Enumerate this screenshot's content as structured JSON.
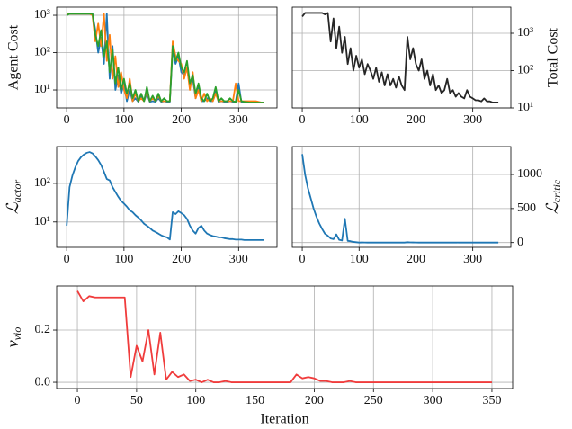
{
  "chart_data": [
    {
      "type": "line",
      "ylabel": "Agent Cost",
      "yaxis": "left",
      "yscale": "log",
      "grid": true,
      "x": [
        0,
        5,
        10,
        15,
        20,
        25,
        30,
        35,
        40,
        45,
        50,
        55,
        60,
        65,
        70,
        75,
        80,
        85,
        90,
        95,
        100,
        105,
        110,
        115,
        120,
        125,
        130,
        135,
        140,
        145,
        150,
        155,
        160,
        165,
        170,
        175,
        180,
        185,
        190,
        195,
        200,
        205,
        210,
        215,
        220,
        225,
        230,
        235,
        240,
        245,
        250,
        255,
        260,
        265,
        270,
        275,
        280,
        285,
        290,
        295,
        300,
        305,
        310,
        315,
        320,
        325,
        330,
        335,
        340,
        345
      ],
      "xlim": [
        -17.5,
        367
      ],
      "xticks": [
        0,
        100,
        200,
        300
      ],
      "ylim": [
        3.3,
        1650
      ],
      "yticks": [
        {
          "value": 10,
          "label": "10¹"
        },
        {
          "value": 100,
          "label": "10²"
        },
        {
          "value": 1000,
          "label": "10³"
        }
      ],
      "series": [
        {
          "color": "#1f77b4",
          "values": [
            1100,
            1100,
            1100,
            1100,
            1100,
            1100,
            1100,
            1100,
            1100,
            1100,
            400,
            100,
            250,
            50,
            1100,
            20,
            150,
            10,
            25,
            8,
            15,
            5,
            10,
            5,
            6,
            4.8,
            7,
            5,
            8,
            4.8,
            5,
            4.8,
            6,
            4.8,
            5,
            4.8,
            4.8,
            120,
            50,
            80,
            30,
            25,
            40,
            12,
            20,
            6,
            12,
            5,
            5,
            6,
            5,
            5,
            10,
            4.8,
            5,
            4.8,
            4.8,
            5,
            4.8,
            4.8,
            15,
            4.6,
            4.6,
            4.6,
            4.6,
            4.6,
            4.6,
            4.6,
            4.6,
            4.6
          ]
        },
        {
          "color": "#ff7f0e",
          "values": [
            1100,
            1100,
            1100,
            1100,
            1100,
            1100,
            1100,
            1100,
            1100,
            1000,
            200,
            600,
            150,
            1100,
            60,
            300,
            20,
            80,
            12,
            30,
            10,
            6,
            20,
            5,
            8,
            5,
            6,
            5,
            10,
            5,
            6,
            5,
            7,
            5,
            5,
            5,
            5,
            200,
            80,
            60,
            50,
            20,
            40,
            10,
            30,
            6,
            10,
            5,
            8,
            5,
            6,
            5,
            8,
            5,
            5,
            5,
            5,
            5,
            5,
            15,
            5,
            5,
            5,
            5,
            5,
            5,
            5,
            4.8,
            4.6,
            4.6
          ]
        },
        {
          "color": "#2ca02c",
          "values": [
            1000,
            1100,
            1100,
            1100,
            1100,
            1100,
            1100,
            1100,
            1100,
            1100,
            300,
            150,
            400,
            80,
            200,
            30,
            120,
            15,
            40,
            10,
            20,
            8,
            15,
            6,
            10,
            5,
            8,
            5,
            12,
            5,
            7,
            5,
            8,
            5,
            6,
            5,
            5,
            150,
            60,
            100,
            40,
            30,
            60,
            15,
            25,
            8,
            15,
            6,
            5,
            8,
            5,
            6,
            12,
            5,
            6,
            5,
            5,
            6,
            5,
            4.8,
            10,
            5,
            4.8,
            4.7,
            4.6,
            4.6,
            4.6,
            4.6,
            4.6,
            4.6
          ]
        }
      ]
    },
    {
      "type": "line",
      "ylabel": "Total Cost",
      "yaxis": "right",
      "yscale": "log",
      "grid": true,
      "x": [
        0,
        5,
        10,
        15,
        20,
        25,
        30,
        35,
        40,
        45,
        50,
        55,
        60,
        65,
        70,
        75,
        80,
        85,
        90,
        95,
        100,
        105,
        110,
        115,
        120,
        125,
        130,
        135,
        140,
        145,
        150,
        155,
        160,
        165,
        170,
        175,
        180,
        185,
        190,
        195,
        200,
        205,
        210,
        215,
        220,
        225,
        230,
        235,
        240,
        245,
        250,
        255,
        260,
        265,
        270,
        275,
        280,
        285,
        290,
        295,
        300,
        305,
        310,
        315,
        320,
        325,
        330,
        335,
        340,
        345
      ],
      "xlim": [
        -17.5,
        367
      ],
      "xticks": [
        0,
        100,
        200,
        300
      ],
      "ylim": [
        10,
        5000
      ],
      "yticks": [
        {
          "value": 10,
          "label": "10¹"
        },
        {
          "value": 100,
          "label": "10²"
        },
        {
          "value": 1000,
          "label": "10³"
        }
      ],
      "series": [
        {
          "color": "#262626",
          "values": [
            2800,
            3500,
            3500,
            3500,
            3500,
            3500,
            3500,
            3500,
            3200,
            3500,
            600,
            2500,
            400,
            1500,
            300,
            800,
            150,
            400,
            100,
            250,
            120,
            200,
            80,
            150,
            100,
            60,
            120,
            50,
            90,
            40,
            80,
            40,
            60,
            35,
            70,
            40,
            30,
            800,
            200,
            400,
            150,
            100,
            200,
            60,
            100,
            40,
            80,
            30,
            40,
            25,
            30,
            60,
            25,
            30,
            20,
            25,
            20,
            18,
            30,
            20,
            18,
            16,
            16,
            15,
            18,
            15,
            15,
            14,
            14,
            14
          ]
        }
      ]
    },
    {
      "type": "line",
      "ylabel": {
        "symbol": "ℒ",
        "subscript": "actor"
      },
      "yaxis": "left",
      "yscale": "log",
      "grid": true,
      "x": [
        0,
        5,
        10,
        15,
        20,
        25,
        30,
        35,
        40,
        45,
        50,
        55,
        60,
        65,
        70,
        75,
        80,
        85,
        90,
        95,
        100,
        105,
        110,
        115,
        120,
        125,
        130,
        135,
        140,
        145,
        150,
        155,
        160,
        165,
        170,
        175,
        180,
        185,
        190,
        195,
        200,
        205,
        210,
        215,
        220,
        225,
        230,
        235,
        240,
        245,
        250,
        255,
        260,
        265,
        270,
        275,
        280,
        285,
        290,
        295,
        300,
        305,
        310,
        315,
        320,
        325,
        330,
        335,
        340,
        345
      ],
      "xlim": [
        -17.5,
        367
      ],
      "xticks": [
        0,
        100,
        200,
        300
      ],
      "ylim": [
        2.2,
        900
      ],
      "yticks": [
        {
          "value": 10,
          "label": "10¹"
        },
        {
          "value": 100,
          "label": "10²"
        }
      ],
      "series": [
        {
          "color": "#1f77b4",
          "values": [
            8,
            80,
            160,
            260,
            380,
            480,
            560,
            620,
            650,
            600,
            500,
            400,
            300,
            200,
            130,
            120,
            80,
            60,
            45,
            35,
            30,
            25,
            20,
            18,
            15,
            13,
            11,
            9,
            8,
            7,
            6,
            5.5,
            5,
            4.5,
            4.2,
            4,
            3.5,
            18,
            16,
            19,
            17,
            15,
            12,
            8,
            6,
            5,
            7,
            8,
            6,
            5,
            4.6,
            4.3,
            4.2,
            4.0,
            4.0,
            3.8,
            3.7,
            3.6,
            3.6,
            3.5,
            3.5,
            3.5,
            3.4,
            3.4,
            3.4,
            3.4,
            3.4,
            3.4,
            3.4,
            3.4
          ]
        }
      ]
    },
    {
      "type": "line",
      "ylabel": {
        "symbol": "ℒ",
        "subscript": "critic"
      },
      "yaxis": "right",
      "yscale": "linear",
      "grid": true,
      "x": [
        0,
        5,
        10,
        15,
        20,
        25,
        30,
        35,
        40,
        45,
        50,
        55,
        60,
        65,
        70,
        75,
        80,
        85,
        90,
        95,
        100,
        105,
        110,
        115,
        120,
        125,
        130,
        135,
        140,
        145,
        150,
        155,
        160,
        165,
        170,
        175,
        180,
        185,
        190,
        195,
        200,
        205,
        210,
        215,
        220,
        225,
        230,
        235,
        240,
        245,
        250,
        255,
        260,
        265,
        270,
        275,
        280,
        285,
        290,
        295,
        300,
        305,
        310,
        315,
        320,
        325,
        330,
        335,
        340,
        345
      ],
      "xlim": [
        -17.5,
        367
      ],
      "xticks": [
        0,
        100,
        200,
        300
      ],
      "ylim": [
        -70,
        1410
      ],
      "yticks": [
        0,
        500,
        1000
      ],
      "series": [
        {
          "color": "#1f77b4",
          "values": [
            1300,
            1000,
            800,
            650,
            500,
            380,
            280,
            200,
            130,
            100,
            60,
            50,
            120,
            40,
            30,
            350,
            25,
            20,
            10,
            5,
            0,
            2,
            1,
            0,
            1,
            0,
            0,
            1,
            0,
            0,
            0,
            1,
            0,
            0,
            0,
            0,
            0,
            5,
            3,
            2,
            1,
            0,
            1,
            0,
            0,
            1,
            0,
            0,
            0,
            1,
            0,
            0,
            0,
            0,
            1,
            0,
            0,
            0,
            0,
            0,
            0,
            0,
            0,
            0,
            0,
            0,
            0,
            0,
            0,
            0
          ]
        }
      ]
    },
    {
      "type": "line",
      "ylabel": {
        "symbol": "v",
        "subscript": "vio"
      },
      "xlabel": "Iteration",
      "yaxis": "left",
      "yscale": "linear",
      "grid": true,
      "x": [
        0,
        5,
        10,
        15,
        20,
        25,
        30,
        35,
        40,
        45,
        50,
        55,
        60,
        65,
        70,
        75,
        80,
        85,
        90,
        95,
        100,
        105,
        110,
        115,
        120,
        125,
        130,
        135,
        140,
        145,
        150,
        155,
        160,
        165,
        170,
        175,
        180,
        185,
        190,
        195,
        200,
        205,
        210,
        215,
        220,
        225,
        230,
        235,
        240,
        245,
        250,
        255,
        260,
        265,
        270,
        275,
        280,
        285,
        290,
        295,
        300,
        305,
        310,
        315,
        320,
        325,
        330,
        335,
        340,
        345,
        350
      ],
      "xlim": [
        -17.5,
        367.5
      ],
      "xticks": [
        0,
        50,
        100,
        150,
        200,
        250,
        300,
        350
      ],
      "ylim": [
        -0.024,
        0.369
      ],
      "yticks": [
        {
          "value": 0,
          "label": "0.0"
        },
        {
          "value": 0.2,
          "label": "0.2"
        }
      ],
      "series": [
        {
          "color": "#f03c3c",
          "values": [
            0.35,
            0.31,
            0.33,
            0.325,
            0.325,
            0.325,
            0.325,
            0.325,
            0.325,
            0.02,
            0.14,
            0.08,
            0.2,
            0.03,
            0.19,
            0.01,
            0.04,
            0.02,
            0.03,
            0.005,
            0.01,
            0,
            0.01,
            0,
            0,
            0.005,
            0,
            0,
            0,
            0,
            0,
            0,
            0,
            0,
            0,
            0,
            0,
            0.03,
            0.015,
            0.02,
            0.015,
            0.005,
            0.005,
            0,
            0,
            0,
            0.005,
            0,
            0,
            0,
            0,
            0,
            0,
            0,
            0,
            0,
            0,
            0,
            0,
            0,
            0,
            0,
            0,
            0,
            0,
            0,
            0,
            0,
            0,
            0,
            0
          ]
        }
      ]
    }
  ]
}
